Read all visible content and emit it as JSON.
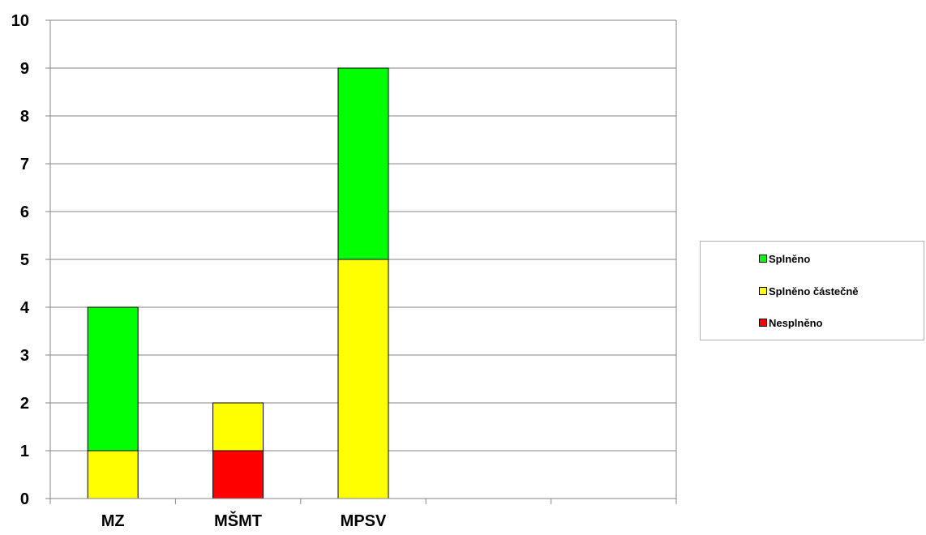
{
  "chart_data": {
    "type": "bar",
    "stacked": true,
    "categories": [
      "MZ",
      "MŠMT",
      "MPSV",
      "",
      ""
    ],
    "series": [
      {
        "name": "Nesplněno",
        "color": "#ff0000",
        "values": [
          0,
          1,
          0,
          0,
          0
        ]
      },
      {
        "name": "Splněno částečně",
        "color": "#ffff00",
        "values": [
          1,
          1,
          5,
          0,
          0
        ]
      },
      {
        "name": "Splněno",
        "color": "#00ff00",
        "values": [
          3,
          0,
          4,
          0,
          0
        ]
      }
    ],
    "y_ticks": [
      "0",
      "1",
      "2",
      "3",
      "4",
      "5",
      "6",
      "7",
      "8",
      "9",
      "10"
    ],
    "ylim": [
      0,
      10
    ],
    "grid": true,
    "legend_position": "right"
  },
  "legend": {
    "items": [
      {
        "label": "Splněno",
        "color": "#00ff00"
      },
      {
        "label": "Splněno částečně",
        "color": "#ffff00"
      },
      {
        "label": "Nesplněno",
        "color": "#ff0000"
      }
    ]
  }
}
